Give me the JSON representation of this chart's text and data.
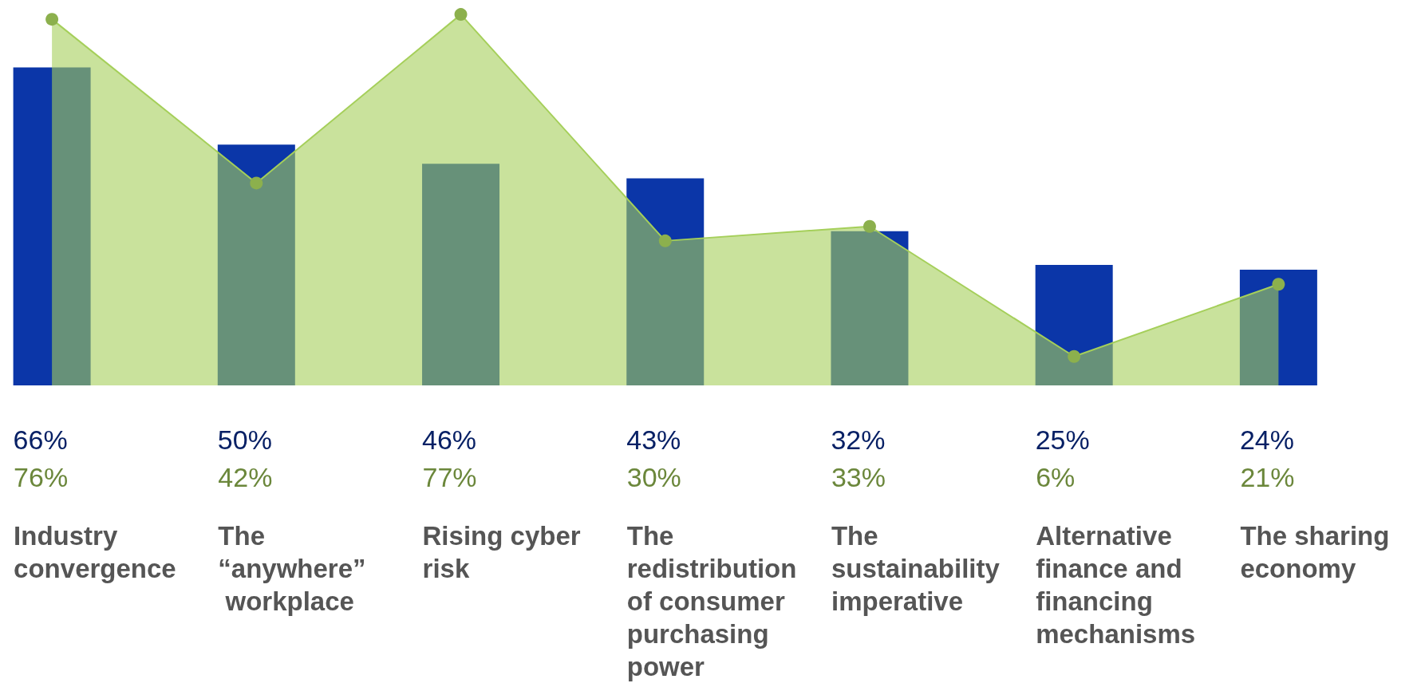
{
  "chart_data": {
    "type": "bar",
    "categories": [
      "Industry convergence",
      "The “anywhere” workplace",
      "Rising cyber risk",
      "The redistribution of consumer purchasing power",
      "The sustainability imperative",
      "Alternative finance and financing mechanisms",
      "The sharing economy"
    ],
    "series": [
      {
        "type": "bar",
        "color": "#0b36a8",
        "values": [
          66,
          50,
          46,
          43,
          32,
          25,
          24
        ],
        "value_labels": [
          "66%",
          "50%",
          "46%",
          "43%",
          "32%",
          "25%",
          "24%"
        ]
      },
      {
        "type": "area",
        "color": "#a5cf5a",
        "values": [
          76,
          42,
          77,
          30,
          33,
          6,
          21
        ],
        "value_labels": [
          "76%",
          "42%",
          "77%",
          "30%",
          "33%",
          "6%",
          "21%"
        ]
      }
    ],
    "tick_labels": "x",
    "grid": false,
    "marker": "circle"
  }
}
